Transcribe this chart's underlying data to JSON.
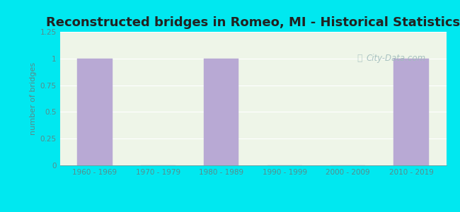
{
  "title": "Reconstructed bridges in Romeo, MI - Historical Statistics",
  "categories": [
    "1960 - 1969",
    "1970 - 1979",
    "1980 - 1989",
    "1990 - 1999",
    "2000 - 2009",
    "2010 - 2019"
  ],
  "values": [
    1,
    0,
    1,
    0,
    0,
    1
  ],
  "bar_color": "#b8a9d4",
  "bar_edge_color": "#b8a9d4",
  "ylabel": "number of bridges",
  "ylim": [
    0,
    1.25
  ],
  "yticks": [
    0,
    0.25,
    0.5,
    0.75,
    1,
    1.25
  ],
  "background_outer": "#00e8f0",
  "background_plot": "#eef5e8",
  "title_fontsize": 13,
  "axis_label_color": "#5a8a8a",
  "tick_label_color": "#5a8a8a",
  "grid_color": "#ffffff",
  "watermark_text": "City-Data.com",
  "watermark_color": "#a0bcbc"
}
